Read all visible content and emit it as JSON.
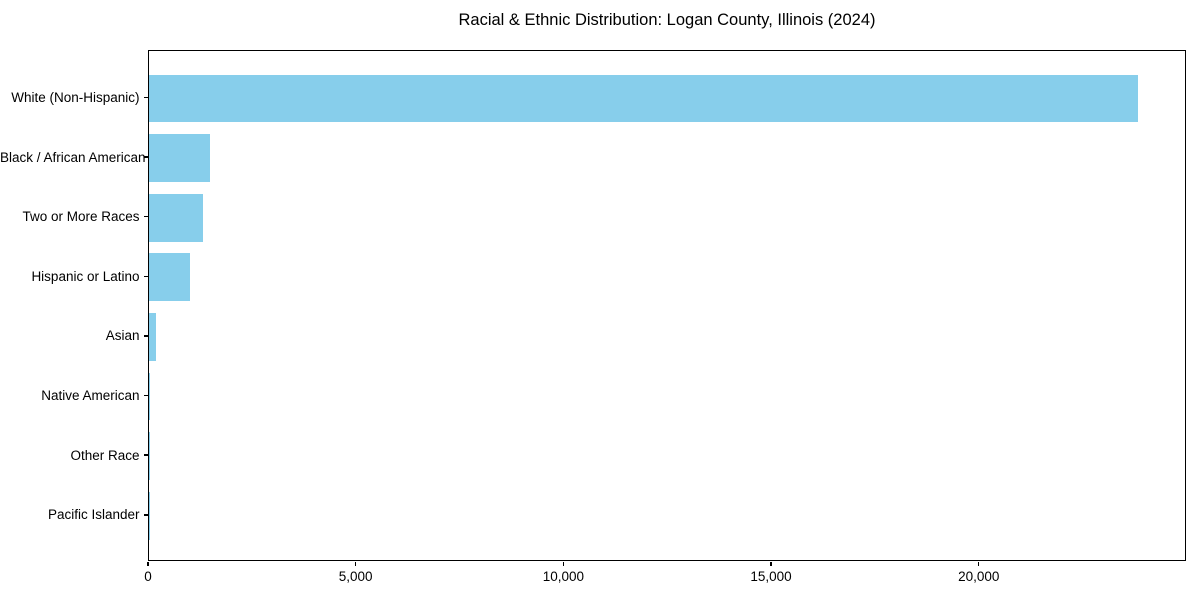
{
  "chart_data": {
    "type": "bar",
    "orientation": "horizontal",
    "title": "Racial & Ethnic Distribution: Logan County, Illinois (2024)",
    "categories": [
      "White (Non-Hispanic)",
      "Black / African American",
      "Two or More Races",
      "Hispanic or Latino",
      "Asian",
      "Native American",
      "Other Race",
      "Pacific Islander"
    ],
    "values": [
      23800,
      1460,
      1290,
      980,
      170,
      35,
      20,
      10
    ],
    "xlabel": "",
    "ylabel": "",
    "xlim": [
      0,
      24990
    ],
    "xticks": [
      {
        "value": 0,
        "label": "0"
      },
      {
        "value": 5000,
        "label": "5,000"
      },
      {
        "value": 10000,
        "label": "10,000"
      },
      {
        "value": 15000,
        "label": "15,000"
      },
      {
        "value": 20000,
        "label": "20,000"
      }
    ],
    "bar_color": "#87CEEB",
    "axis_color": "#000000",
    "text_color": "#000000",
    "background_color": "#ffffff",
    "grid": false,
    "legend": false
  }
}
